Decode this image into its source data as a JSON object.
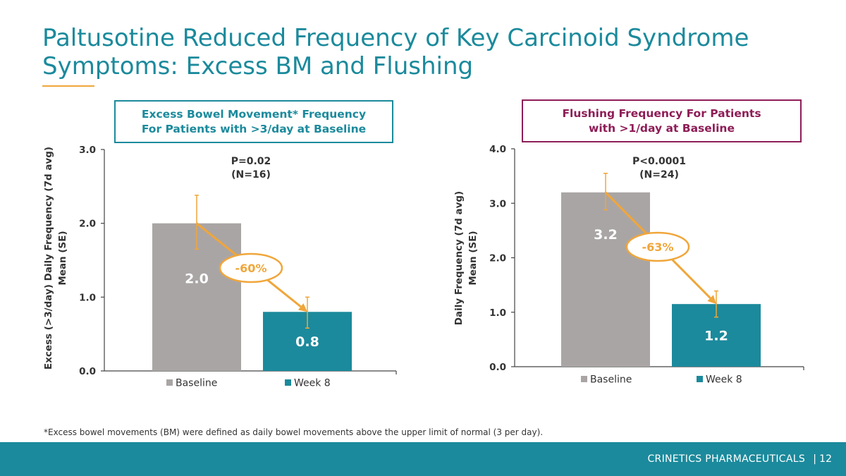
{
  "slide": {
    "title": "Paltusotine Reduced Frequency of Key Carcinoid Syndrome Symptoms: Excess BM and Flushing",
    "footnote": "*Excess bowel movements (BM) were defined as daily bowel movements above the upper limit of normal (3 per day).",
    "footer_company": "CRINETICS PHARMACEUTICALS",
    "footer_separator": "|",
    "page_number": "12"
  },
  "colors": {
    "teal": "#1b8a9c",
    "gray": "#aaa5a5",
    "orange": "#f0a63a",
    "maroon": "#8e1d57"
  },
  "chart_data": [
    {
      "type": "bar",
      "title": "Excess Bowel Movement* Frequency\nFor Patients with >3/day at Baseline",
      "ylabel": "Excess (>3/day) Daily Frequency (7d avg) Mean (SE)",
      "ylim": [
        0,
        3
      ],
      "yticks": [
        0,
        1,
        2,
        3
      ],
      "ytick_labels": [
        "0.0",
        "1.0",
        "2.0",
        "3.0"
      ],
      "categories": [
        "Baseline",
        "Week 8"
      ],
      "values": [
        2.0,
        0.8
      ],
      "value_labels": [
        "2.0",
        "0.8"
      ],
      "error_bars": [
        [
          1.65,
          2.38
        ],
        [
          0.58,
          1.0
        ]
      ],
      "bar_colors": [
        "#aaa5a5",
        "#1b8a9c"
      ],
      "annotation_p": "P=0.02",
      "annotation_n": "(N=16)",
      "change_label": "-60%",
      "legend": [
        "Baseline",
        "Week 8"
      ],
      "legend_position": "bottom",
      "grid": false
    },
    {
      "type": "bar",
      "title": "Flushing Frequency For Patients\nwith >1/day at Baseline",
      "ylabel": "Daily Frequency (7d avg) Mean (SE)",
      "ylim": [
        0,
        4
      ],
      "yticks": [
        0,
        1,
        2,
        3,
        4
      ],
      "ytick_labels": [
        "0.0",
        "1.0",
        "2.0",
        "3.0",
        "4.0"
      ],
      "categories": [
        "Baseline",
        "Week 8"
      ],
      "values": [
        3.2,
        1.15
      ],
      "value_labels": [
        "3.2",
        "1.2"
      ],
      "error_bars": [
        [
          2.88,
          3.55
        ],
        [
          0.91,
          1.39
        ]
      ],
      "bar_colors": [
        "#aaa5a5",
        "#1b8a9c"
      ],
      "annotation_p": "P<0.0001",
      "annotation_n": "(N=24)",
      "change_label": "-63%",
      "legend": [
        "Baseline",
        "Week 8"
      ],
      "legend_position": "bottom",
      "grid": false
    }
  ]
}
